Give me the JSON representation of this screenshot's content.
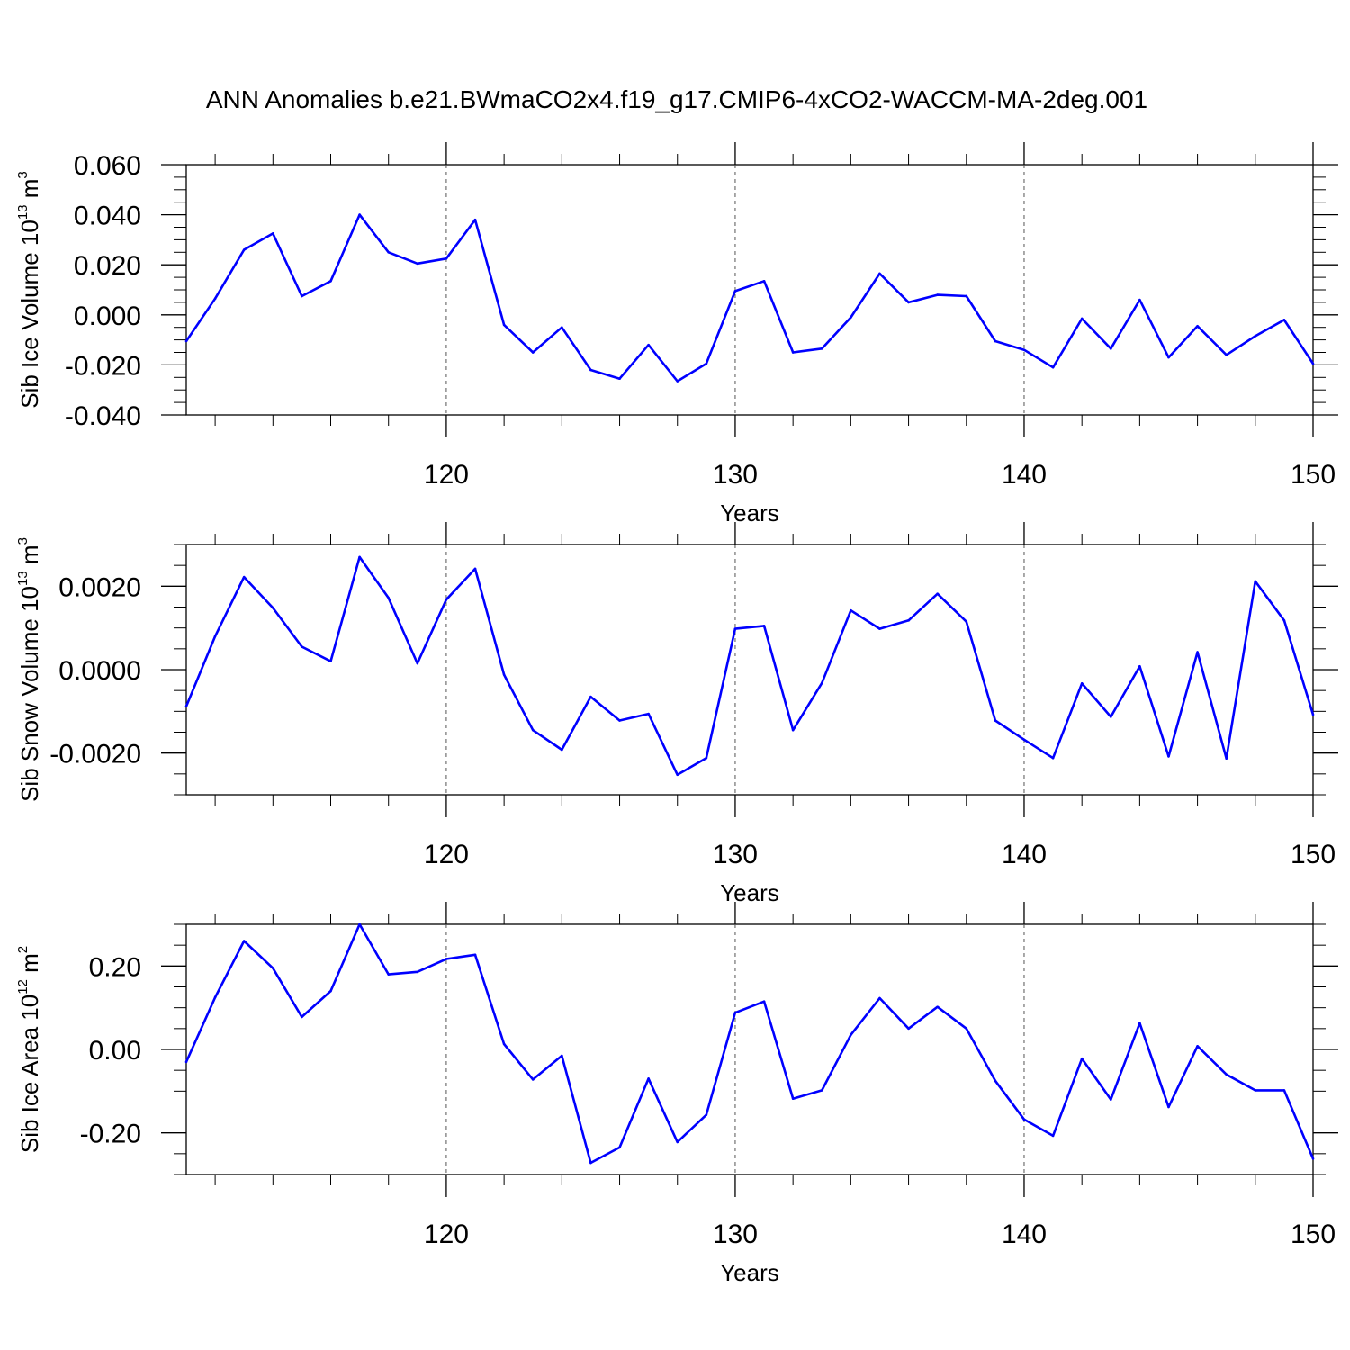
{
  "title": "ANN Anomalies b.e21.BWmaCO2x4.f19_g17.CMIP6-4xCO2-WACCM-MA-2deg.001",
  "line_color": "#0000ff",
  "chart_data": [
    {
      "type": "line",
      "ylabel": {
        "main": "Sib Ice Volume 10",
        "sup": "13",
        "unit": " m",
        "unit_sup": "3"
      },
      "xlabel": "Years",
      "xlim": [
        111,
        150
      ],
      "ylim": [
        -0.04,
        0.06
      ],
      "yticks": [
        -0.04,
        -0.02,
        0.0,
        0.02,
        0.04,
        0.06
      ],
      "ytick_labels": [
        "-0.040",
        "-0.020",
        "0.000",
        "0.020",
        "0.040",
        "0.060"
      ],
      "y_minor_step": 0.005,
      "xticks": [
        120,
        130,
        140,
        150
      ],
      "xtick_labels": [
        "120",
        "130",
        "140",
        "150"
      ],
      "grid": "dashed vertical at major x ticks",
      "x": [
        111,
        112,
        113,
        114,
        115,
        116,
        117,
        118,
        119,
        120,
        121,
        122,
        123,
        124,
        125,
        126,
        127,
        128,
        129,
        130,
        131,
        132,
        133,
        134,
        135,
        136,
        137,
        138,
        139,
        140,
        141,
        142,
        143,
        144,
        145,
        146,
        147,
        148,
        149,
        150
      ],
      "y": [
        -0.0105,
        0.0065,
        0.026,
        0.0325,
        0.0075,
        0.0135,
        0.04,
        0.025,
        0.0205,
        0.0225,
        0.038,
        -0.004,
        -0.015,
        -0.005,
        -0.022,
        -0.0255,
        -0.012,
        -0.0265,
        -0.0195,
        0.0095,
        0.0135,
        -0.015,
        -0.0135,
        -0.001,
        0.0165,
        0.005,
        0.008,
        0.0075,
        -0.0105,
        -0.014,
        -0.021,
        -0.0015,
        -0.0135,
        0.006,
        -0.017,
        -0.0045,
        -0.016,
        -0.0085,
        -0.002,
        -0.0195
      ]
    },
    {
      "type": "line",
      "ylabel": {
        "main": "Sib Snow Volume 10",
        "sup": "13",
        "unit": " m",
        "unit_sup": "3"
      },
      "xlabel": "Years",
      "xlim": [
        111,
        150
      ],
      "ylim": [
        -0.003,
        0.003
      ],
      "yticks": [
        -0.002,
        0.0,
        0.002
      ],
      "ytick_labels": [
        "-0.0020",
        "0.0000",
        "0.0020"
      ],
      "y_minor_step": 0.0005,
      "xticks": [
        120,
        130,
        140,
        150
      ],
      "xtick_labels": [
        "120",
        "130",
        "140",
        "150"
      ],
      "grid": "dashed vertical at major x ticks",
      "x": [
        111,
        112,
        113,
        114,
        115,
        116,
        117,
        118,
        119,
        120,
        121,
        122,
        123,
        124,
        125,
        126,
        127,
        128,
        129,
        130,
        131,
        132,
        133,
        134,
        135,
        136,
        137,
        138,
        139,
        140,
        141,
        142,
        143,
        144,
        145,
        146,
        147,
        148,
        149,
        150
      ],
      "y": [
        -0.00088,
        0.0008,
        0.00222,
        0.00148,
        0.00055,
        0.0002,
        0.0027,
        0.00172,
        0.00015,
        0.00168,
        0.00242,
        -0.00012,
        -0.00145,
        -0.00192,
        -0.00065,
        -0.00122,
        -0.00106,
        -0.00252,
        -0.00212,
        0.00098,
        0.00105,
        -0.00145,
        -0.00032,
        0.00142,
        0.00098,
        0.00118,
        0.00182,
        0.00115,
        -0.00122,
        -0.00168,
        -0.00212,
        -0.00033,
        -0.00113,
        8e-05,
        -0.00208,
        0.00042,
        -0.00213,
        0.00212,
        0.00118,
        -0.00108
      ]
    },
    {
      "type": "line",
      "ylabel": {
        "main": "Sib Ice Area 10",
        "sup": "12",
        "unit": " m",
        "unit_sup": "2"
      },
      "xlabel": "Years",
      "xlim": [
        111,
        150
      ],
      "ylim": [
        -0.3,
        0.3
      ],
      "yticks": [
        -0.2,
        0.0,
        0.2
      ],
      "ytick_labels": [
        "-0.20",
        "0.00",
        "0.20"
      ],
      "y_minor_step": 0.05,
      "xticks": [
        120,
        130,
        140,
        150
      ],
      "xtick_labels": [
        "120",
        "130",
        "140",
        "150"
      ],
      "grid": "dashed vertical at major x ticks",
      "x": [
        111,
        112,
        113,
        114,
        115,
        116,
        117,
        118,
        119,
        120,
        121,
        122,
        123,
        124,
        125,
        126,
        127,
        128,
        129,
        130,
        131,
        132,
        133,
        134,
        135,
        136,
        137,
        138,
        139,
        140,
        141,
        142,
        143,
        144,
        145,
        146,
        147,
        148,
        149,
        150
      ],
      "y": [
        -0.03,
        0.125,
        0.26,
        0.195,
        0.078,
        0.14,
        0.3,
        0.18,
        0.186,
        0.217,
        0.227,
        0.013,
        -0.072,
        -0.015,
        -0.272,
        -0.235,
        -0.07,
        -0.222,
        -0.157,
        0.088,
        0.115,
        -0.118,
        -0.098,
        0.035,
        0.123,
        0.05,
        0.102,
        0.05,
        -0.075,
        -0.168,
        -0.207,
        -0.022,
        -0.12,
        0.063,
        -0.138,
        0.008,
        -0.06,
        -0.098,
        -0.098,
        -0.262
      ]
    }
  ]
}
